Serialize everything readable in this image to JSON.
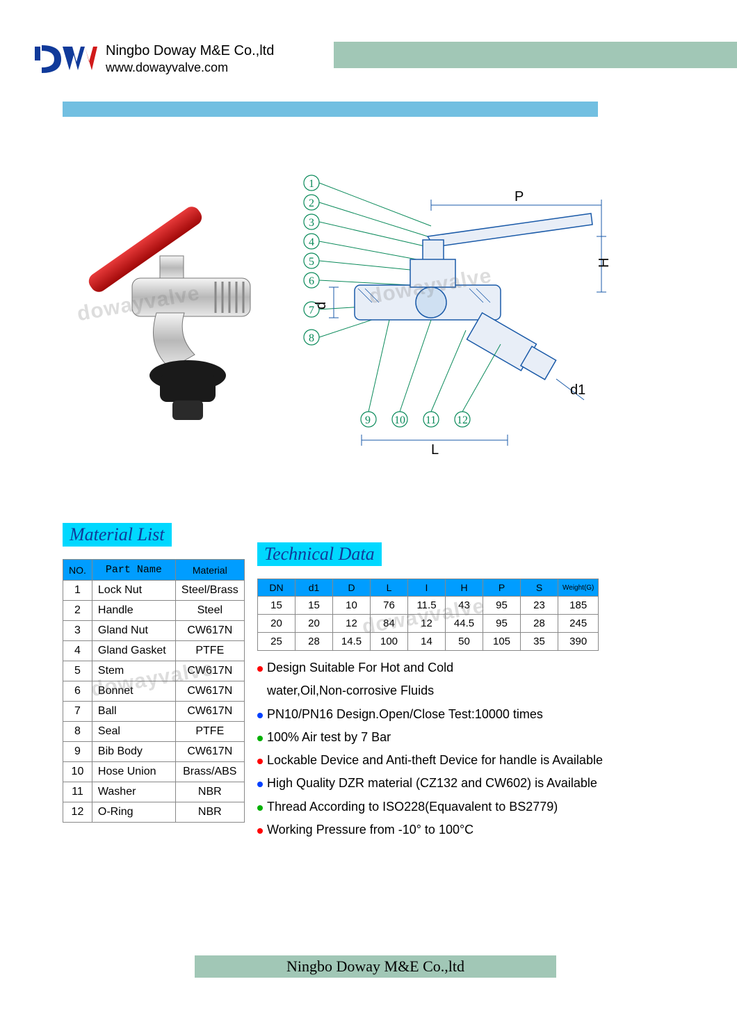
{
  "header": {
    "company_name": "Ningbo Doway M&E Co.,ltd",
    "website": "www.dowayvalve.com"
  },
  "colors": {
    "green_bar": "#a1c7b6",
    "blue_bar": "#72bfe1",
    "cyan_heading": "#00d8ff",
    "table_header": "#009dff",
    "logo_blue": "#103a9a",
    "handle_red": "#d11a1a"
  },
  "material_list": {
    "heading": "Material List",
    "columns": [
      "NO.",
      "Part Name",
      "Material"
    ],
    "rows": [
      [
        "1",
        "Lock Nut",
        "Steel/Brass"
      ],
      [
        "2",
        "Handle",
        "Steel"
      ],
      [
        "3",
        "Gland Nut",
        "CW617N"
      ],
      [
        "4",
        "Gland Gasket",
        "PTFE"
      ],
      [
        "5",
        "Stem",
        "CW617N"
      ],
      [
        "6",
        "Bonnet",
        "CW617N"
      ],
      [
        "7",
        "Ball",
        "CW617N"
      ],
      [
        "8",
        "Seal",
        "PTFE"
      ],
      [
        "9",
        "Bib Body",
        "CW617N"
      ],
      [
        "10",
        "Hose Union",
        "Brass/ABS"
      ],
      [
        "11",
        "Washer",
        "NBR"
      ],
      [
        "12",
        "O-Ring",
        "NBR"
      ]
    ]
  },
  "technical_data": {
    "heading": "Technical Data",
    "columns": [
      "DN",
      "d1",
      "D",
      "L",
      "I",
      "H",
      "P",
      "S",
      "Weight(G)"
    ],
    "rows": [
      [
        "15",
        "15",
        "10",
        "76",
        "11.5",
        "43",
        "95",
        "23",
        "185"
      ],
      [
        "20",
        "20",
        "12",
        "84",
        "12",
        "44.5",
        "95",
        "28",
        "245"
      ],
      [
        "25",
        "28",
        "14.5",
        "100",
        "14",
        "50",
        "105",
        "35",
        "390"
      ]
    ]
  },
  "notes": [
    {
      "color": "r",
      "text": "Design Suitable For Hot and Cold"
    },
    {
      "color": "none",
      "text": "water,Oil,Non-corrosive Fluids"
    },
    {
      "color": "b",
      "text": "PN10/PN16 Design.Open/Close Test:10000 times"
    },
    {
      "color": "g",
      "text": "100% Air test by 7 Bar"
    },
    {
      "color": "r",
      "text": "Lockable Device and Anti-theft Device for handle is Available"
    },
    {
      "color": "b",
      "text": "High Quality DZR material (CZ132 and CW602) is Available"
    },
    {
      "color": "g",
      "text": "Thread According to ISO228(Equavalent to   BS2779)"
    },
    {
      "color": "r",
      "text": "Working Pressure from -10° to 100°C"
    }
  ],
  "diagram": {
    "callouts": [
      "1",
      "2",
      "3",
      "4",
      "5",
      "6",
      "7",
      "8",
      "9",
      "10",
      "11",
      "12"
    ],
    "dims": [
      "P",
      "H",
      "d",
      "L",
      "d1"
    ]
  },
  "footer": "Ningbo Doway M&E Co.,ltd",
  "watermark": "dowayvalve"
}
